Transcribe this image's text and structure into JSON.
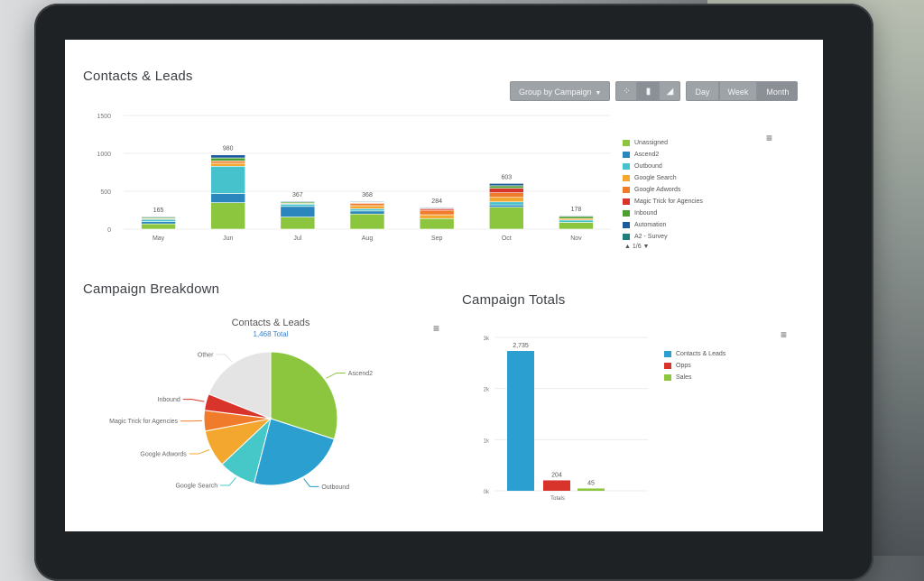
{
  "panels": {
    "contacts_leads_title": "Contacts & Leads",
    "campaign_breakdown_title": "Campaign Breakdown",
    "campaign_totals_title": "Campaign Totals"
  },
  "toolbar": {
    "group_by_label": "Group by Campaign",
    "chart_type_icons": [
      "scatter-chart-icon",
      "bar-chart-icon",
      "area-chart-icon"
    ],
    "period_buttons": [
      "Day",
      "Week",
      "Month"
    ],
    "active_period": "Month"
  },
  "colors": {
    "Unassigned": "#8cc63f",
    "Ascend2": "#2a86bd",
    "Outbound": "#46c2cc",
    "Google Search": "#f4a72e",
    "Google Adwords": "#ef7b2b",
    "Magic Trick for Agencies": "#d9342b",
    "Inbound": "#4c9e2f",
    "Automation": "#1c5a9c",
    "A2 - Survey": "#1f7d7a",
    "Other": "#e4e4e4",
    "Contacts & Leads": "#2a9fd0",
    "Opps": "#d9342b",
    "Sales": "#8cc63f"
  },
  "chart_data": [
    {
      "type": "bar",
      "stacked": true,
      "title": "",
      "categories": [
        "May",
        "Jun",
        "Jul",
        "Aug",
        "Sep",
        "Oct",
        "Nov"
      ],
      "totals": [
        165,
        980,
        367,
        368,
        284,
        603,
        178
      ],
      "ylim": [
        0,
        1500
      ],
      "yticks": [
        0,
        500,
        1000,
        1500
      ],
      "series": [
        {
          "name": "Unassigned",
          "values": [
            70,
            350,
            160,
            200,
            140,
            290,
            90
          ]
        },
        {
          "name": "Ascend2",
          "values": [
            30,
            120,
            140,
            40,
            0,
            30,
            0
          ]
        },
        {
          "name": "Outbound",
          "values": [
            30,
            360,
            30,
            30,
            0,
            40,
            30
          ]
        },
        {
          "name": "Google Search",
          "values": [
            10,
            40,
            10,
            40,
            50,
            60,
            20
          ]
        },
        {
          "name": "Google Adwords",
          "values": [
            0,
            30,
            0,
            30,
            60,
            60,
            0
          ]
        },
        {
          "name": "Magic Trick for Agencies",
          "values": [
            0,
            0,
            0,
            10,
            20,
            60,
            0
          ]
        },
        {
          "name": "Inbound",
          "values": [
            15,
            40,
            17,
            8,
            4,
            33,
            28
          ]
        },
        {
          "name": "Automation",
          "values": [
            10,
            40,
            10,
            10,
            10,
            30,
            10
          ]
        }
      ],
      "legend": [
        "Unassigned",
        "Ascend2",
        "Outbound",
        "Google Search",
        "Google Adwords",
        "Magic Trick for Agencies",
        "Inbound",
        "Automation",
        "A2 - Survey"
      ],
      "legend_placement": "right",
      "legend_page": "1/6"
    },
    {
      "type": "pie",
      "title": "Contacts & Leads",
      "subtitle": "1,468 Total",
      "slices": [
        {
          "name": "Ascend2",
          "value": 30,
          "color": "#8cc63f"
        },
        {
          "name": "Outbound",
          "value": 24,
          "color": "#2a9fd0"
        },
        {
          "name": "Google Search",
          "value": 9,
          "color": "#46c8c8"
        },
        {
          "name": "Google Adwords",
          "value": 9,
          "color": "#f4a72e"
        },
        {
          "name": "Magic Trick for Agencies",
          "value": 5,
          "color": "#ef7b2b"
        },
        {
          "name": "Inbound",
          "value": 4,
          "color": "#d9342b"
        },
        {
          "name": "Other",
          "value": 19,
          "color": "#e4e4e4"
        }
      ]
    },
    {
      "type": "bar",
      "title": "",
      "categories": [
        "Totals"
      ],
      "series": [
        {
          "name": "Contacts & Leads",
          "values": [
            2735
          ]
        },
        {
          "name": "Opps",
          "values": [
            204
          ]
        },
        {
          "name": "Sales",
          "values": [
            45
          ]
        }
      ],
      "value_labels": [
        "2,735",
        "204",
        "45"
      ],
      "ylim": [
        0,
        3000
      ],
      "yticks": [
        "0k",
        "1k",
        "2k",
        "3k"
      ],
      "legend_placement": "right"
    }
  ]
}
